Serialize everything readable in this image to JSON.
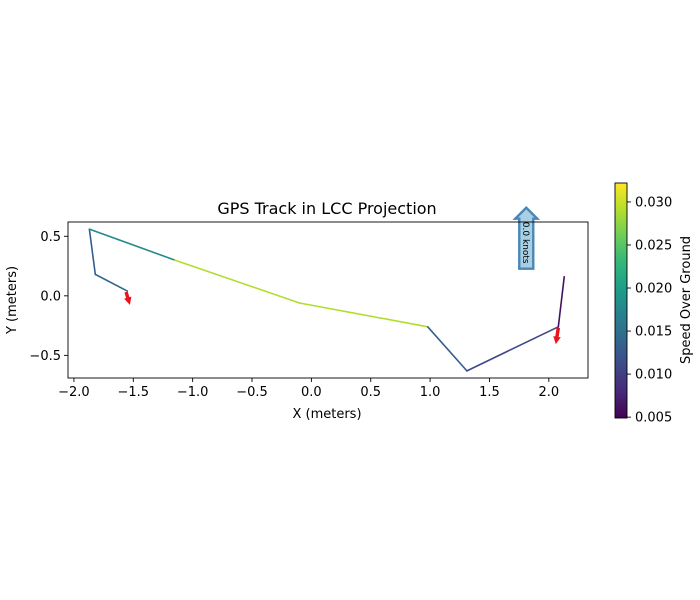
{
  "chart_data": {
    "type": "line",
    "title": "GPS Track in LCC Projection",
    "xlabel": "X (meters)",
    "ylabel": "Y (meters)",
    "xlim": [
      -2.05,
      2.33
    ],
    "ylim": [
      -0.69,
      0.62
    ],
    "grid": false,
    "xticks": [
      -2.0,
      -1.5,
      -1.0,
      -0.5,
      0.0,
      0.5,
      1.0,
      1.5,
      2.0
    ],
    "xtick_labels": [
      "−2.0",
      "−1.5",
      "−1.0",
      "−0.5",
      "0.0",
      "0.5",
      "1.0",
      "1.5",
      "2.0"
    ],
    "yticks": [
      0.5,
      0.0,
      -0.5
    ],
    "ytick_labels": [
      "0.5",
      "0.0",
      "−0.5"
    ],
    "track": {
      "x": [
        -1.55,
        -1.82,
        -1.87,
        -1.15,
        -0.1,
        0.98,
        1.31,
        2.08,
        2.13
      ],
      "y": [
        0.04,
        0.18,
        0.56,
        0.3,
        -0.06,
        -0.26,
        -0.63,
        -0.26,
        0.16
      ],
      "segment_speeds": [
        0.014,
        0.013,
        0.018,
        0.029,
        0.029,
        0.013,
        0.011,
        0.006
      ]
    },
    "direction_arrows": [
      {
        "x": -1.56,
        "y": 0.03,
        "dx": 0.03,
        "dy": -0.1,
        "color": "#e8141b"
      },
      {
        "x": 2.08,
        "y": -0.27,
        "dx": -0.02,
        "dy": -0.13,
        "color": "#e8141b"
      }
    ],
    "speed_annotation": {
      "text": "0.0 knots",
      "x": 1.81,
      "y": 0.48,
      "rotation_deg": -90,
      "fill": "#a8cfe4",
      "edge": "#4a87b5"
    },
    "colorbar": {
      "label": "Speed Over Ground",
      "vmin": 0.0049,
      "vmax": 0.0322,
      "ticks": [
        0.005,
        0.01,
        0.015,
        0.02,
        0.025,
        0.03
      ],
      "tick_labels": [
        "0.005",
        "0.010",
        "0.015",
        "0.020",
        "0.025",
        "0.030"
      ],
      "colormap": "viridis",
      "stops": [
        "#440154",
        "#482878",
        "#3e4989",
        "#31688e",
        "#26828e",
        "#1f9e89",
        "#35b779",
        "#6ece58",
        "#b5de2b",
        "#fde725"
      ]
    }
  }
}
